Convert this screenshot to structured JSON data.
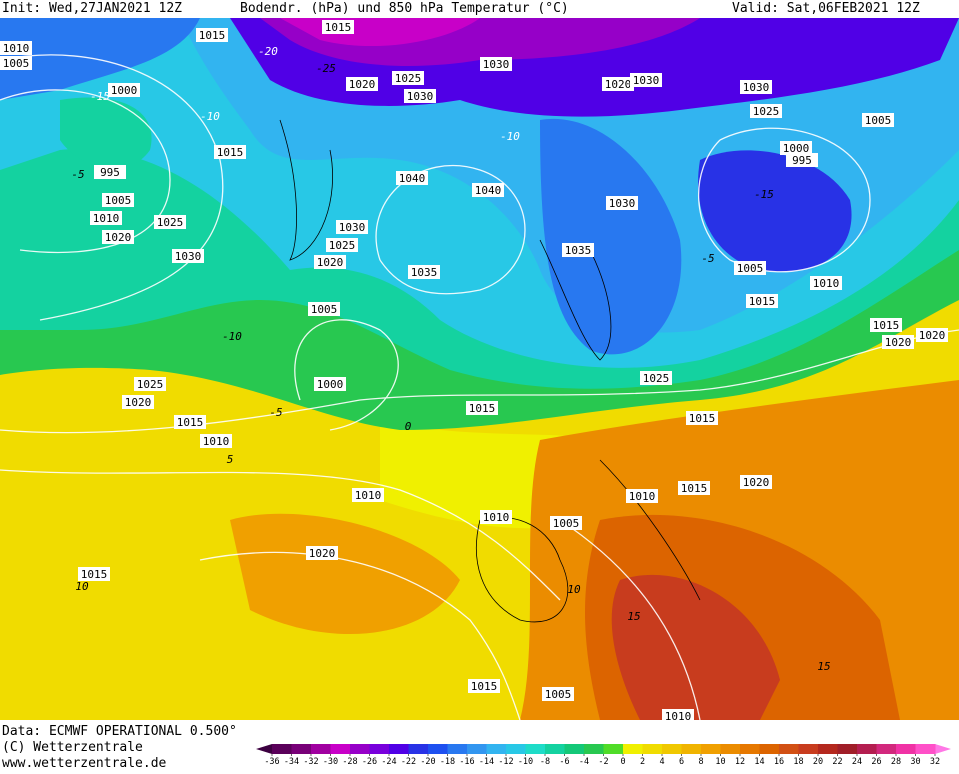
{
  "header": {
    "init": "Init: Wed,27JAN2021 12Z",
    "title": "Bodendr. (hPa) und 850 hPa Temperatur (°C)",
    "valid": "Valid: Sat,06FEB2021 12Z"
  },
  "footer": {
    "data": "Data: ECMWF OPERATIONAL 0.500°",
    "copyright": "(C) Wetterzentrale",
    "url": "www.wetterzentrale.de"
  },
  "isobar_labels": [
    1015,
    1015,
    1010,
    1005,
    1000,
    1020,
    1025,
    1030,
    1030,
    1020,
    1030,
    1030,
    1025,
    1005,
    1015,
    995,
    1000,
    995,
    1040,
    1040,
    1005,
    1010,
    1025,
    1030,
    1020,
    1030,
    1025,
    1030,
    1020,
    1035,
    1005,
    1035,
    1010,
    1005,
    1015,
    1015,
    1020,
    1020,
    1000,
    1025,
    1025,
    1020,
    1015,
    1015,
    1010,
    1015,
    1010,
    1010,
    1015,
    1020,
    1010,
    1005,
    1020,
    1015,
    1015,
    1005,
    1010
  ],
  "temperature_labels": [
    -15,
    -20,
    -25,
    -10,
    -5,
    -10,
    -5,
    0,
    -5,
    -15,
    10,
    15,
    5,
    10,
    15,
    -10
  ],
  "colorbar": {
    "ticks": [
      -36,
      -34,
      -32,
      -30,
      -28,
      -26,
      -24,
      -22,
      -20,
      -18,
      -16,
      -14,
      -12,
      -10,
      -8,
      -6,
      -4,
      -2,
      0,
      2,
      4,
      6,
      8,
      10,
      12,
      14,
      16,
      18,
      20,
      22,
      24,
      26,
      28,
      30,
      32
    ],
    "colors": [
      "#3c0040",
      "#5a005a",
      "#780078",
      "#a000a0",
      "#c800c8",
      "#9600c8",
      "#7800dc",
      "#5000e6",
      "#2832e6",
      "#1e50f0",
      "#2878f0",
      "#3296f0",
      "#32b4f0",
      "#28c8e6",
      "#1edcc8",
      "#14d2a0",
      "#14c878",
      "#28c850",
      "#50dc28",
      "#f0f000",
      "#f0dc00",
      "#f0c800",
      "#f0b400",
      "#f0a000",
      "#eb8c00",
      "#e67800",
      "#dc6400",
      "#d25014",
      "#c83c1e",
      "#b4281e",
      "#a01e28",
      "#b41e50",
      "#d2287d",
      "#f032a5",
      "#ff50c8",
      "#ff78e6"
    ]
  }
}
